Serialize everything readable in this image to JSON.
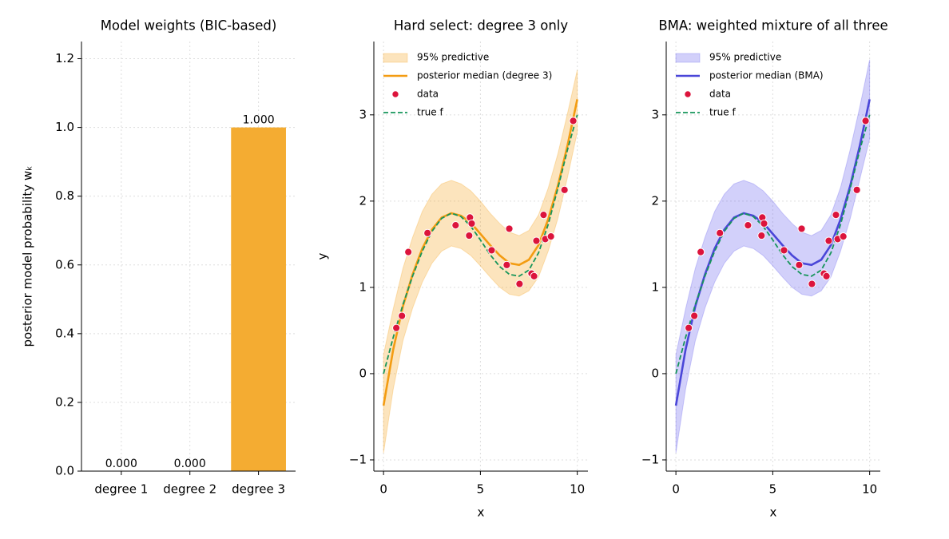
{
  "chart_data": [
    {
      "type": "bar",
      "title": "Model weights  (BIC-based)",
      "ylabel": "posterior model probability wₖ",
      "categories": [
        "degree 1",
        "degree 2",
        "degree 3"
      ],
      "values": [
        0,
        0,
        1
      ],
      "value_labels": [
        "0.000",
        "0.000",
        "1.000"
      ],
      "color": "#f4ac32",
      "ylim": [
        0,
        1.25
      ],
      "yticks": [
        {
          "value": 0,
          "label": "0.0"
        },
        {
          "value": 0.2,
          "label": "0.2"
        },
        {
          "value": 0.4,
          "label": "0.4"
        },
        {
          "value": 0.6,
          "label": "0.6"
        },
        {
          "value": 0.8,
          "label": "0.8"
        },
        {
          "value": 1,
          "label": "1.0"
        },
        {
          "value": 1.2,
          "label": "1.2"
        }
      ],
      "grid": true
    },
    {
      "type": "line",
      "title": "Hard select: degree 3 only",
      "xlabel": "x",
      "ylabel": "y",
      "xlim": [
        -0.5,
        10.55
      ],
      "ylim": [
        -1.13,
        3.85
      ],
      "xticks": [
        0,
        5,
        10
      ],
      "yticks": [
        {
          "value": -1,
          "label": "−1"
        },
        0,
        1,
        2,
        3
      ],
      "grid": true,
      "legend": "upper left",
      "x": [
        0,
        0.5,
        1,
        1.5,
        2,
        2.5,
        3,
        3.5,
        4,
        4.5,
        5,
        5.5,
        6,
        6.5,
        7,
        7.5,
        8,
        8.5,
        9,
        9.5,
        10
      ],
      "series": [
        {
          "name": "95% predictive",
          "type": "band",
          "color": "#f5a623",
          "alpha": 0.3,
          "lower": [
            -0.92,
            -0.18,
            0.38,
            0.76,
            1.06,
            1.28,
            1.42,
            1.48,
            1.45,
            1.37,
            1.25,
            1.12,
            1.0,
            0.92,
            0.9,
            0.96,
            1.12,
            1.42,
            1.8,
            2.28,
            2.8
          ],
          "upper": [
            0.22,
            0.75,
            1.22,
            1.58,
            1.88,
            2.08,
            2.2,
            2.24,
            2.2,
            2.12,
            2.0,
            1.86,
            1.74,
            1.64,
            1.6,
            1.66,
            1.84,
            2.15,
            2.55,
            3.02,
            3.52
          ]
        },
        {
          "name": "posterior median  (degree 3)",
          "type": "line",
          "color": "#f39c12",
          "values": [
            -0.37,
            0.28,
            0.78,
            1.15,
            1.45,
            1.67,
            1.81,
            1.86,
            1.83,
            1.75,
            1.62,
            1.49,
            1.37,
            1.28,
            1.26,
            1.32,
            1.49,
            1.79,
            2.18,
            2.65,
            3.18
          ]
        },
        {
          "name": "data",
          "type": "scatter",
          "color": "#dc143c",
          "x": [
            0.66,
            0.95,
            1.28,
            2.27,
            3.72,
            4.42,
            4.46,
            4.55,
            5.58,
            6.36,
            6.49,
            7.02,
            7.64,
            7.77,
            7.89,
            8.26,
            8.35,
            8.64,
            9.34,
            9.79
          ],
          "values": [
            0.53,
            0.67,
            1.41,
            1.63,
            1.72,
            1.6,
            1.81,
            1.74,
            1.43,
            1.26,
            1.68,
            1.04,
            1.16,
            1.13,
            1.54,
            1.84,
            1.56,
            1.59,
            2.13,
            2.93
          ]
        },
        {
          "name": "true f",
          "type": "dashed",
          "color": "#16955a",
          "values": [
            0.0,
            0.42,
            0.8,
            1.13,
            1.42,
            1.65,
            1.8,
            1.86,
            1.82,
            1.71,
            1.55,
            1.38,
            1.24,
            1.15,
            1.13,
            1.2,
            1.4,
            1.73,
            2.15,
            2.6,
            3.0
          ]
        }
      ]
    },
    {
      "type": "line",
      "title": "BMA: weighted mixture of all three",
      "xlabel": "x",
      "xlim": [
        -0.5,
        10.55
      ],
      "ylim": [
        -1.13,
        3.85
      ],
      "xticks": [
        0,
        5,
        10
      ],
      "yticks": [
        {
          "value": -1,
          "label": "−1"
        },
        0,
        1,
        2,
        3
      ],
      "grid": true,
      "legend": "upper left",
      "x": [
        0,
        0.5,
        1,
        1.5,
        2,
        2.5,
        3,
        3.5,
        4,
        4.5,
        5,
        5.5,
        6,
        6.5,
        7,
        7.5,
        8,
        8.5,
        9,
        9.5,
        10
      ],
      "series": [
        {
          "name": "95% predictive",
          "type": "band",
          "color": "#6b63ee",
          "alpha": 0.3,
          "lower": [
            -0.92,
            -0.18,
            0.38,
            0.76,
            1.06,
            1.28,
            1.42,
            1.48,
            1.45,
            1.37,
            1.25,
            1.12,
            1.0,
            0.92,
            0.9,
            0.96,
            1.12,
            1.42,
            1.8,
            2.26,
            2.72
          ],
          "upper": [
            0.22,
            0.75,
            1.22,
            1.58,
            1.88,
            2.08,
            2.2,
            2.24,
            2.2,
            2.12,
            2.0,
            1.86,
            1.74,
            1.64,
            1.6,
            1.66,
            1.84,
            2.16,
            2.6,
            3.1,
            3.64
          ]
        },
        {
          "name": "posterior median  (BMA)",
          "type": "line",
          "color": "#4a46d8",
          "values": [
            -0.37,
            0.28,
            0.78,
            1.15,
            1.45,
            1.67,
            1.81,
            1.86,
            1.83,
            1.75,
            1.62,
            1.49,
            1.37,
            1.28,
            1.26,
            1.32,
            1.49,
            1.79,
            2.18,
            2.65,
            3.18
          ]
        },
        {
          "name": "data",
          "type": "scatter",
          "color": "#dc143c",
          "x": [
            0.66,
            0.95,
            1.28,
            2.27,
            3.72,
            4.42,
            4.46,
            4.55,
            5.58,
            6.36,
            6.49,
            7.02,
            7.64,
            7.77,
            7.89,
            8.26,
            8.35,
            8.64,
            9.34,
            9.79
          ],
          "values": [
            0.53,
            0.67,
            1.41,
            1.63,
            1.72,
            1.6,
            1.81,
            1.74,
            1.43,
            1.26,
            1.68,
            1.04,
            1.16,
            1.13,
            1.54,
            1.84,
            1.56,
            1.59,
            2.13,
            2.93
          ]
        },
        {
          "name": "true f",
          "type": "dashed",
          "color": "#16955a",
          "values": [
            0.0,
            0.42,
            0.8,
            1.13,
            1.42,
            1.65,
            1.8,
            1.86,
            1.82,
            1.71,
            1.55,
            1.38,
            1.24,
            1.15,
            1.13,
            1.2,
            1.4,
            1.73,
            2.15,
            2.6,
            3.0
          ]
        }
      ]
    }
  ]
}
